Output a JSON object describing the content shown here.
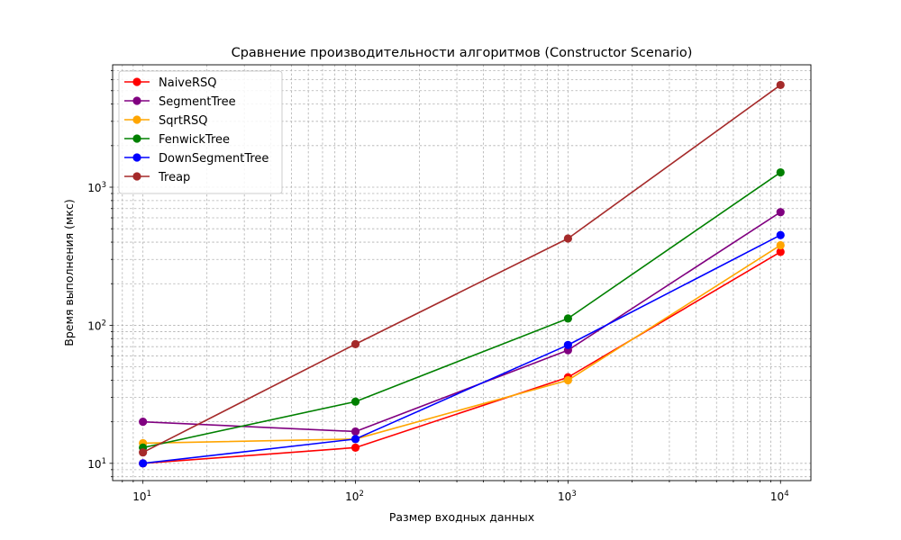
{
  "chart_data": {
    "type": "line",
    "title": "Сравнение производительности алгоритмов (Constructor Scenario)",
    "xlabel": "Размер входных данных",
    "ylabel": "Время выполнения (мкс)",
    "xscale": "log",
    "yscale": "log",
    "xlim": [
      7.2,
      13900
    ],
    "ylim": [
      7.5,
      7700
    ],
    "grid": true,
    "legend_position": "top-left",
    "x": [
      10,
      100,
      1000,
      10000
    ],
    "x_tick_labels": [
      {
        "base": "10",
        "exp": "1"
      },
      {
        "base": "10",
        "exp": "2"
      },
      {
        "base": "10",
        "exp": "3"
      },
      {
        "base": "10",
        "exp": "4"
      }
    ],
    "y_tick_labels": [
      {
        "base": "10",
        "exp": "1"
      },
      {
        "base": "10",
        "exp": "2"
      },
      {
        "base": "10",
        "exp": "3"
      }
    ],
    "series": [
      {
        "name": "NaiveRSQ",
        "color": "#ff0000",
        "values": [
          10,
          13,
          42,
          340
        ]
      },
      {
        "name": "SegmentTree",
        "color": "#800080",
        "values": [
          20,
          17,
          66,
          660
        ]
      },
      {
        "name": "SqrtRSQ",
        "color": "#ffa500",
        "values": [
          14,
          15,
          40,
          380
        ]
      },
      {
        "name": "FenwickTree",
        "color": "#008000",
        "values": [
          13,
          28,
          112,
          1280
        ]
      },
      {
        "name": "DownSegmentTree",
        "color": "#0000ff",
        "values": [
          10,
          15,
          72,
          450
        ]
      },
      {
        "name": "Treap",
        "color": "#a52a2a",
        "values": [
          12,
          73,
          425,
          5500
        ]
      }
    ]
  }
}
